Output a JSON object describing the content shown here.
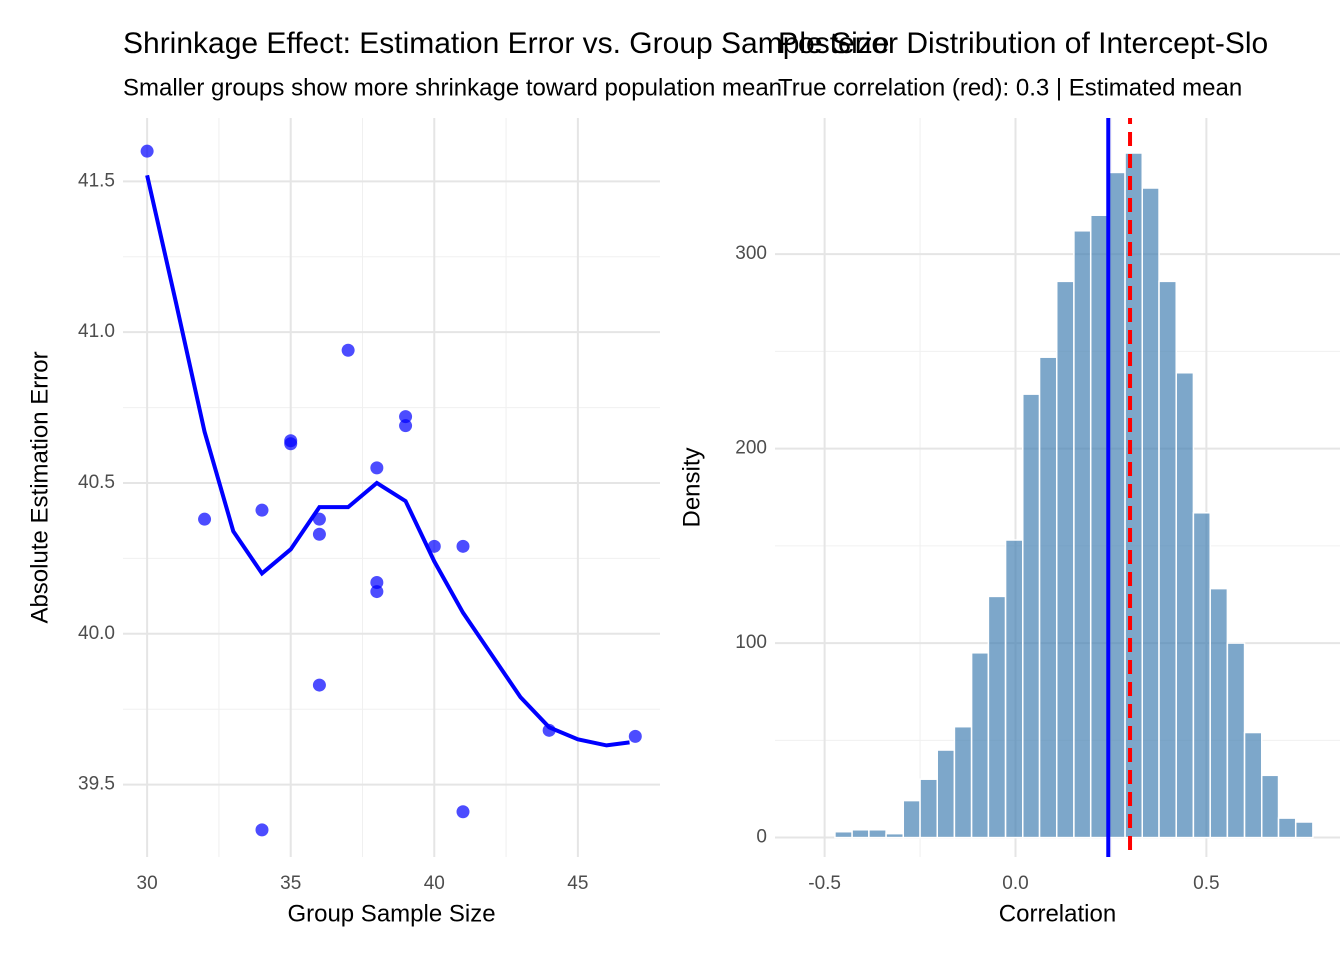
{
  "chart_data": [
    {
      "type": "scatter",
      "title": "Shrinkage Effect: Estimation Error vs. Group Sample Size",
      "subtitle": "Smaller groups show more shrinkage toward population mean",
      "x_label": "Group Sample Size",
      "y_label": "Absolute Estimation Error",
      "x": [
        30,
        32,
        34,
        34,
        35,
        35,
        36,
        36,
        36,
        37,
        38,
        38,
        38,
        39,
        39,
        40,
        41,
        41,
        44,
        47
      ],
      "values": [
        41.6,
        40.38,
        40.41,
        39.35,
        40.64,
        40.63,
        40.38,
        40.33,
        39.83,
        40.94,
        40.55,
        40.17,
        40.14,
        40.72,
        40.69,
        40.29,
        40.29,
        39.41,
        39.68,
        39.66
      ],
      "color": "#0000ff",
      "smooth": {
        "color": "#0000ff",
        "x": [
          30,
          31,
          32,
          33,
          34,
          35,
          36,
          37,
          38,
          39,
          40,
          41,
          42,
          43,
          44,
          45,
          46,
          46.8
        ],
        "values": [
          41.52,
          41.1,
          40.67,
          40.34,
          40.2,
          40.28,
          40.42,
          40.42,
          40.5,
          40.44,
          40.24,
          40.07,
          39.93,
          39.79,
          39.69,
          39.65,
          39.63,
          39.64
        ]
      },
      "xlim": [
        29.16,
        47.86
      ],
      "ylim": [
        39.26,
        41.71
      ],
      "xticks": [
        30,
        35,
        40,
        45
      ],
      "yticks": [
        39.5,
        {
          "value": 40,
          "label": "40.0"
        },
        40.5,
        {
          "value": 41,
          "label": "41.0"
        },
        41.5
      ],
      "grid": true
    },
    {
      "type": "histogram",
      "title": "Posterior Distribution of Intercept-Slo",
      "subtitle": "True correlation (red): 0.3 | Estimated mean",
      "x_label": "Correlation",
      "y_label": "Density",
      "bins": [
        -0.473,
        -0.428,
        -0.384,
        -0.339,
        -0.294,
        -0.25,
        -0.205,
        -0.16,
        -0.115,
        -0.071,
        -0.026,
        0.019,
        0.063,
        0.108,
        0.153,
        0.197,
        0.242,
        0.287,
        0.332,
        0.376,
        0.421,
        0.466,
        0.51,
        0.555,
        0.6,
        0.645,
        0.689,
        0.734,
        0.779
      ],
      "values": [
        3,
        4,
        4,
        2,
        19,
        30,
        45,
        57,
        95,
        124,
        153,
        228,
        247,
        286,
        312,
        320,
        342,
        352,
        334,
        286,
        239,
        167,
        128,
        100,
        54,
        32,
        10,
        8
      ],
      "color": "#4682b4",
      "vlines": [
        {
          "value": 0.243,
          "color": "#0000ff",
          "style": "solid"
        },
        {
          "value": 0.3,
          "color": "#ff0000",
          "style": "dashed"
        }
      ],
      "xlim": [
        -0.63,
        0.85
      ],
      "ylim": [
        -10,
        370
      ],
      "xticks": [
        -0.5,
        {
          "value": 0,
          "label": "0.0"
        },
        0.5
      ],
      "yticks": [
        0,
        100,
        200,
        300
      ],
      "grid": true
    }
  ]
}
